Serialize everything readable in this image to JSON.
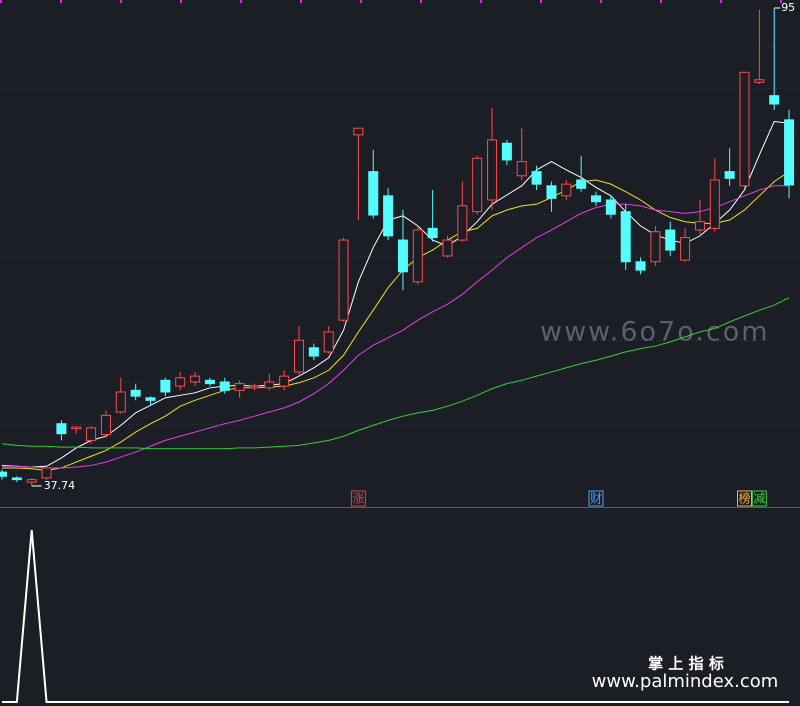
{
  "chart_data": [
    {
      "type": "candlestick",
      "open": [
        39.4,
        38.7,
        38.2,
        38.7,
        45.2,
        44.6,
        43.2,
        43.9,
        46.6,
        49.2,
        48.3,
        50.4,
        49.7,
        50.2,
        50.4,
        50.2,
        49.2,
        49.5,
        49.5,
        49.7,
        51.4,
        54.3,
        53.8,
        57.6,
        79.8,
        75.4,
        72.5,
        67.2,
        62.2,
        68.6,
        65.3,
        67.2,
        70.6,
        72.0,
        78.8,
        74.9,
        75.4,
        73.7,
        72.5,
        74.4,
        72.5,
        72.0,
        70.6,
        64.6,
        64.6,
        68.4,
        64.8,
        68.4,
        68.6,
        75.4,
        73.7,
        86.1,
        84.5,
        81.6
      ],
      "high": [
        39.7,
        38.9,
        38.7,
        39.9,
        45.6,
        44.9,
        44.9,
        46.8,
        50.7,
        50.0,
        48.5,
        50.7,
        51.4,
        51.4,
        50.7,
        50.7,
        50.4,
        50.0,
        51.2,
        51.6,
        56.9,
        54.8,
        56.9,
        67.5,
        80.6,
        78.0,
        73.4,
        70.8,
        68.9,
        73.2,
        67.7,
        74.2,
        77.3,
        83.0,
        79.2,
        80.6,
        76.1,
        74.2,
        74.4,
        77.3,
        73.0,
        72.5,
        71.5,
        65.1,
        68.9,
        69.4,
        68.6,
        72.0,
        77.0,
        78.2,
        87.3,
        94.8,
        95,
        82.8
      ],
      "low": [
        38.5,
        38.2,
        37.74,
        38.5,
        43.2,
        44.0,
        42.8,
        43.5,
        46.4,
        48.0,
        47.3,
        48.5,
        49.2,
        49.7,
        49.7,
        48.8,
        48.3,
        49.2,
        49.2,
        49.2,
        50.9,
        52.8,
        53.6,
        57.4,
        69.6,
        69.8,
        67.2,
        61.2,
        61.9,
        67.0,
        65.1,
        67.0,
        70.3,
        70.8,
        76.2,
        74.4,
        73.2,
        70.6,
        72.0,
        73.0,
        71.3,
        69.8,
        63.6,
        63.1,
        64.1,
        65.3,
        64.6,
        67.9,
        68.2,
        73.7,
        73.4,
        85.9,
        82.8,
        72.2
      ],
      "close": [
        38.9,
        38.5,
        38.5,
        39.9,
        44.0,
        44.8,
        44.7,
        46.2,
        49.0,
        48.5,
        48.0,
        49.0,
        50.7,
        50.9,
        50.0,
        49.2,
        50.0,
        49.7,
        50.2,
        50.9,
        55.2,
        53.3,
        56.2,
        67.2,
        80.6,
        70.2,
        67.7,
        63.4,
        68.4,
        67.5,
        67.2,
        71.3,
        77.0,
        79.2,
        76.8,
        76.6,
        73.9,
        72.2,
        73.9,
        73.4,
        71.8,
        70.3,
        64.6,
        63.6,
        68.2,
        66.0,
        67.5,
        69.4,
        74.4,
        74.6,
        87.3,
        86.4,
        83.5,
        73.8
      ],
      "up_color": "#ff4a4a",
      "down_color": "#54fcfc",
      "series": [
        {
          "color": "#ffffff",
          "values": [
            40.2,
            40.1,
            40.0,
            40.1,
            41.1,
            42.3,
            43.2,
            43.7,
            45.0,
            46.5,
            47.4,
            48.3,
            48.6,
            48.9,
            49.5,
            49.7,
            49.8,
            49.7,
            49.8,
            50.0,
            50.9,
            51.9,
            53.1,
            56.4,
            62.2,
            66.3,
            69.6,
            70.1,
            68.9,
            67.2,
            66.5,
            67.7,
            69.4,
            71.5,
            72.6,
            73.7,
            75.6,
            76.6,
            75.6,
            74.7,
            73.5,
            72.5,
            70.6,
            68.9,
            67.8,
            67.2,
            66.8,
            67.7,
            69.2,
            70.8,
            73.2,
            77.4,
            81.4,
            81.2
          ]
        },
        {
          "color": "#f0e020",
          "values": [
            39.9,
            39.9,
            39.8,
            39.6,
            39.9,
            40.6,
            41.3,
            42.0,
            43.0,
            44.2,
            45.2,
            46.1,
            47.3,
            48.0,
            48.6,
            49.2,
            49.5,
            49.5,
            49.6,
            49.7,
            50.1,
            50.7,
            51.6,
            53.4,
            56.2,
            58.8,
            61.5,
            63.6,
            65.1,
            66.0,
            67.2,
            68.2,
            68.6,
            70.1,
            70.8,
            71.3,
            71.5,
            72.3,
            73.2,
            74.2,
            74.4,
            73.9,
            73.0,
            72.0,
            70.8,
            69.9,
            69.4,
            69.2,
            69.2,
            69.6,
            70.8,
            72.5,
            74.2,
            75.4
          ]
        },
        {
          "color": "#e040e0",
          "values": [
            40.1,
            40.1,
            40.0,
            39.9,
            39.9,
            40.0,
            40.2,
            40.6,
            41.2,
            41.8,
            42.5,
            43.2,
            43.7,
            44.2,
            44.7,
            45.2,
            45.6,
            46.1,
            46.6,
            47.1,
            47.8,
            48.8,
            50.0,
            51.6,
            53.4,
            54.6,
            55.5,
            56.4,
            57.6,
            58.6,
            59.5,
            60.7,
            62.2,
            63.6,
            65.1,
            66.3,
            67.5,
            68.4,
            69.4,
            70.4,
            71.1,
            71.5,
            71.5,
            71.3,
            70.8,
            70.6,
            70.4,
            70.6,
            71.1,
            71.8,
            72.5,
            73.2,
            73.7,
            73.7
          ]
        },
        {
          "color": "#30d030",
          "values": [
            42.8,
            42.6,
            42.5,
            42.5,
            42.4,
            42.4,
            42.3,
            42.3,
            42.3,
            42.3,
            42.2,
            42.2,
            42.2,
            42.2,
            42.2,
            42.2,
            42.3,
            42.3,
            42.4,
            42.5,
            42.6,
            42.9,
            43.2,
            43.7,
            44.4,
            45.0,
            45.6,
            46.1,
            46.5,
            46.8,
            47.3,
            47.9,
            48.6,
            49.4,
            50.0,
            50.4,
            50.9,
            51.4,
            51.9,
            52.4,
            52.8,
            53.3,
            53.8,
            54.2,
            54.5,
            55.0,
            55.6,
            56.2,
            56.6,
            57.4,
            58.1,
            58.8,
            59.4,
            60.3
          ]
        }
      ],
      "ylim": [
        35.46,
        95.96
      ],
      "ygrid": [
        90.4,
        85.4,
        80.4,
        75.4,
        70.3,
        65.3,
        60.3,
        55.2,
        50.2,
        45.2,
        40.2
      ],
      "markers": [
        {
          "text": "涨",
          "index": 24,
          "color": "#e04040"
        },
        {
          "text": "财",
          "index": 40,
          "color": "#4aa0ff"
        },
        {
          "text": "榜",
          "index": 50,
          "color": "#ffb030"
        },
        {
          "text": "减",
          "index": 51,
          "color": "#40d040"
        }
      ]
    },
    {
      "type": "line",
      "color": "#ffffff",
      "values": [
        0,
        0,
        1,
        0,
        0,
        0,
        0,
        0,
        0,
        0,
        0,
        0,
        0,
        0,
        0,
        0,
        0,
        0,
        0,
        0,
        0,
        0,
        0,
        0,
        0,
        0,
        0,
        0,
        0,
        0,
        0,
        0,
        0,
        0,
        0,
        0,
        0,
        0,
        0,
        0,
        0,
        0,
        0,
        0,
        0,
        0,
        0,
        0,
        0,
        0,
        0,
        0,
        0,
        0
      ],
      "ylim": [
        0,
        1
      ]
    }
  ],
  "watermarks": {
    "site": "www.6o7o.com",
    "brand": "掌 上 指 标",
    "url": "www.palmindex.com"
  }
}
